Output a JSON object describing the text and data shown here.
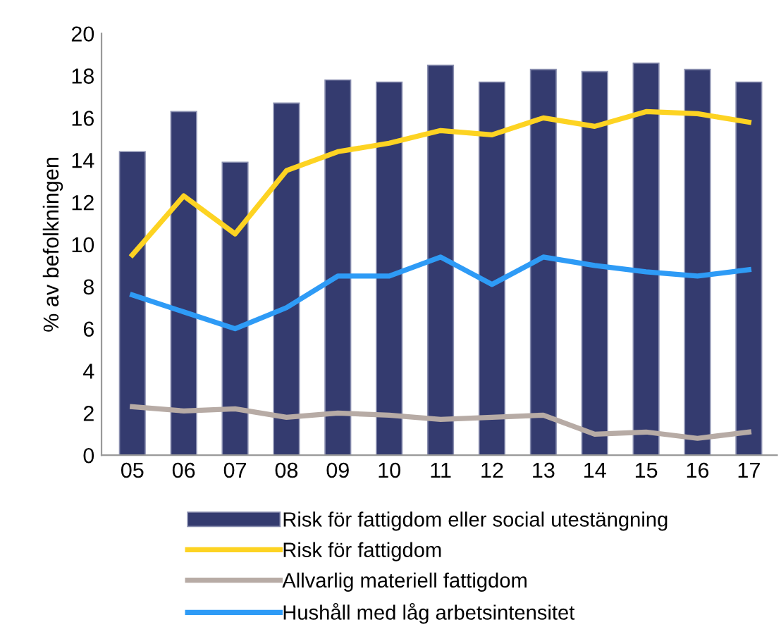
{
  "chart_data": {
    "type": "bar",
    "ylabel": "% av befolkningen",
    "categories": [
      "05",
      "06",
      "07",
      "08",
      "09",
      "10",
      "11",
      "12",
      "13",
      "14",
      "15",
      "16",
      "17"
    ],
    "series": [
      {
        "name": "Risk för fattigdom eller social utestängning",
        "color": "#343b6f",
        "values": [
          14.4,
          16.3,
          13.9,
          16.7,
          17.8,
          17.7,
          18.5,
          17.7,
          18.3,
          18.2,
          18.6,
          18.3,
          17.7
        ]
      },
      {
        "name": "Risk för fattigdom",
        "type": "line",
        "color": "#fdd322",
        "values": [
          9.5,
          12.3,
          10.5,
          13.5,
          14.4,
          14.8,
          15.4,
          15.2,
          16.0,
          15.6,
          16.3,
          16.2,
          15.8
        ]
      },
      {
        "name": "Allvarlig materiell fattigdom",
        "type": "line",
        "color": "#b7aba5",
        "values": [
          2.3,
          2.1,
          2.2,
          1.8,
          2.0,
          1.9,
          1.7,
          1.8,
          1.9,
          1.0,
          1.1,
          0.8,
          1.1
        ]
      },
      {
        "name": "Hushåll med låg arbetsintensitet",
        "type": "line",
        "color": "#2e9bf6",
        "values": [
          7.6,
          6.8,
          6.0,
          7.0,
          8.5,
          8.5,
          9.4,
          8.1,
          9.4,
          9.0,
          8.7,
          8.5,
          8.8
        ]
      }
    ],
    "ylim": [
      0,
      20
    ],
    "yticks": [
      0,
      2,
      4,
      6,
      8,
      10,
      12,
      14,
      16,
      18,
      20
    ],
    "grid": false,
    "legend": "bottom"
  }
}
